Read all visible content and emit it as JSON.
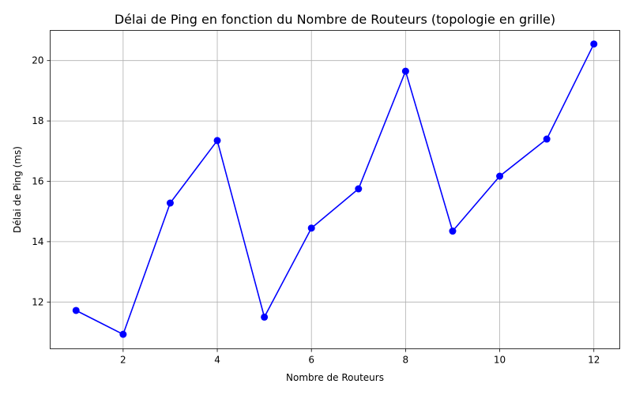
{
  "chart_data": {
    "type": "line",
    "title": "Délai de Ping en fonction du Nombre de Routeurs (topologie en grille)",
    "xlabel": "Nombre de Routeurs",
    "ylabel": "Délai de Ping (ms)",
    "x": [
      1,
      2,
      3,
      4,
      5,
      6,
      7,
      8,
      9,
      10,
      11,
      12
    ],
    "series": [
      {
        "values": [
          11.72,
          10.93,
          15.28,
          17.35,
          11.5,
          14.45,
          15.75,
          19.65,
          14.35,
          16.17,
          17.4,
          20.55
        ],
        "color": "#0000ff",
        "marker": "circle"
      }
    ],
    "xlim": [
      0.45,
      12.55
    ],
    "ylim": [
      10.45,
      21.0
    ],
    "xticks": [
      2,
      4,
      6,
      8,
      10,
      12
    ],
    "yticks": [
      12,
      14,
      16,
      18,
      20
    ],
    "grid": true
  }
}
